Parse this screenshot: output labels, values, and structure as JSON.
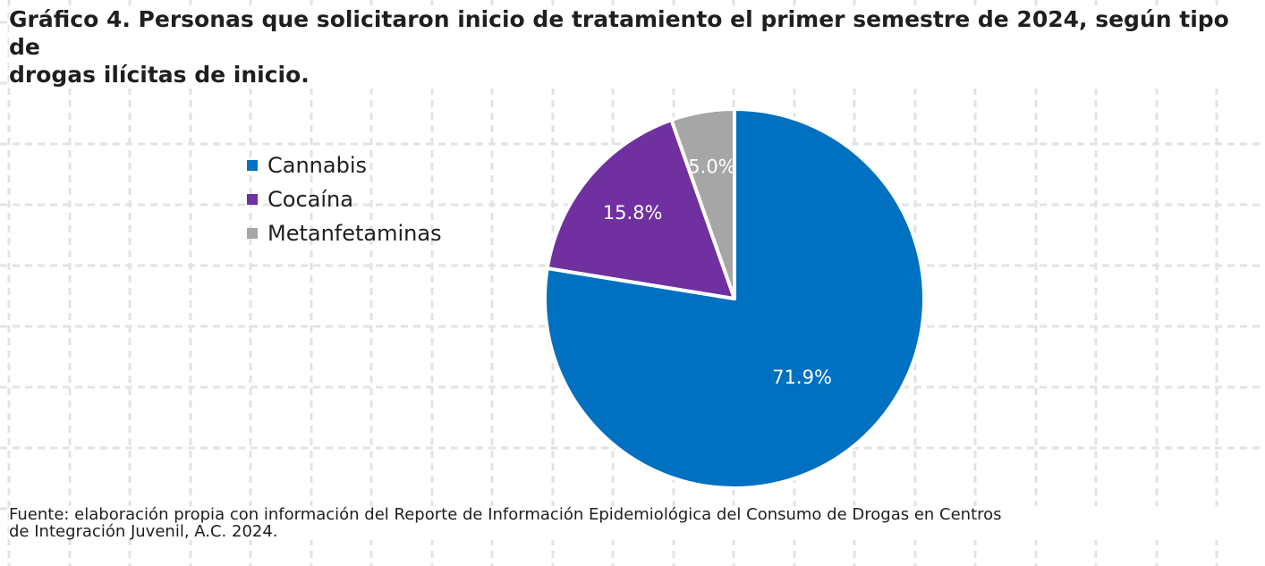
{
  "header": {
    "title_line1": "Gráfico 4. Personas que solicitaron inicio de tratamiento el primer semestre de 2024, según tipo de",
    "title_line2": "drogas ilícitas de inicio."
  },
  "footer": {
    "source_line1": "Fuente: elaboración propia con información del Reporte de Información Epidemiológica del Consumo de Drogas en Centros",
    "source_line2": "de Integración Juvenil, A.C. 2024."
  },
  "chart_data": {
    "type": "pie",
    "title": "Gráfico 4. Personas que solicitaron inicio de tratamiento el primer semestre de 2024, según tipo de drogas ilícitas de inicio.",
    "legend_position": "left",
    "slices": [
      {
        "label": "Cannabis",
        "value": 71.9,
        "display": "71.9%",
        "color": "#0070c0"
      },
      {
        "label": "Cocaína",
        "value": 15.8,
        "display": "15.8%",
        "color": "#7030a0"
      },
      {
        "label": "Metanfetaminas",
        "value": 5.0,
        "display": "5.0%",
        "color": "#a6a6a6"
      }
    ]
  }
}
